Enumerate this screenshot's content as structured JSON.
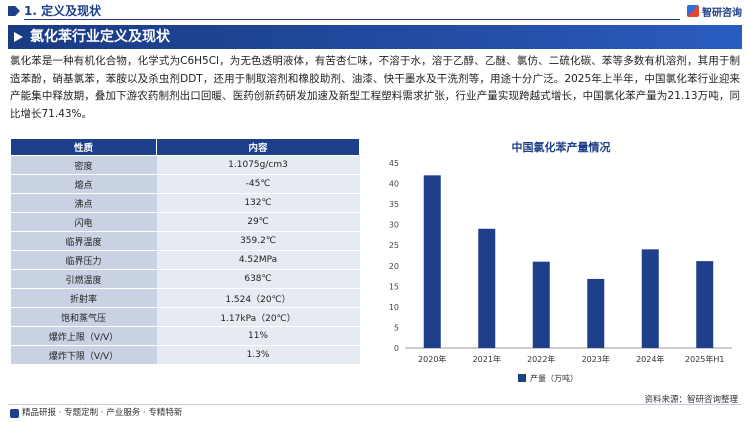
{
  "header": {
    "section_title": "1. 定义及现状",
    "brand": "智研咨询"
  },
  "banner": {
    "title": "氯化苯行业定义及现状"
  },
  "paragraph": "氯化苯是一种有机化合物，化学式为C6H5Cl，为无色透明液体，有苦杏仁味，不溶于水，溶于乙醇、乙醚、氯仿、二硫化碳、苯等多数有机溶剂，其用于制造苯酚，硝基氯苯，苯胺以及杀虫剂DDT，还用于制取溶剂和橡胶助剂、油漆、快干墨水及干洗剂等，用途十分广泛。2025年上半年，中国氯化苯行业迎来产能集中释放期，叠加下游农药制剂出口回暖、医药创新药研发加速及新型工程塑料需求扩张，行业产量实现跨越式增长，中国氯化苯产量为21.13万吨，同比增长71.43%。",
  "table": {
    "headers": [
      "性质",
      "内容"
    ],
    "rows": [
      [
        "密度",
        "1.1075g/cm3"
      ],
      [
        "熔点",
        "-45℃"
      ],
      [
        "沸点",
        "132℃"
      ],
      [
        "闪电",
        "29℃"
      ],
      [
        "临界温度",
        "359.2℃"
      ],
      [
        "临界压力",
        "4.52MPa"
      ],
      [
        "引燃温度",
        "638℃"
      ],
      [
        "折射率",
        "1.524（20℃）"
      ],
      [
        "饱和蒸气压",
        "1.17kPa（20℃）"
      ],
      [
        "爆炸上限（V/V）",
        "11%"
      ],
      [
        "爆炸下限（V/V）",
        "1.3%"
      ]
    ]
  },
  "chart_data": {
    "type": "bar",
    "title": "中国氯化苯产量情况",
    "categories": [
      "2020年",
      "2021年",
      "2022年",
      "2023年",
      "2024年",
      "2025年H1"
    ],
    "series": [
      {
        "name": "产量（万吨）",
        "values": [
          42,
          29,
          21,
          16.8,
          24,
          21.13
        ]
      }
    ],
    "ylim": [
      0,
      45
    ],
    "yticks": [
      0,
      5,
      10,
      15,
      20,
      25,
      30,
      35,
      40,
      45
    ],
    "grid": false,
    "legend": "bottom",
    "bar_color": "#1e3f8a"
  },
  "source": "资料来源：智研咨询整理",
  "footer": "精品研报 · 专题定制 · 产业服务 · 专精特新"
}
